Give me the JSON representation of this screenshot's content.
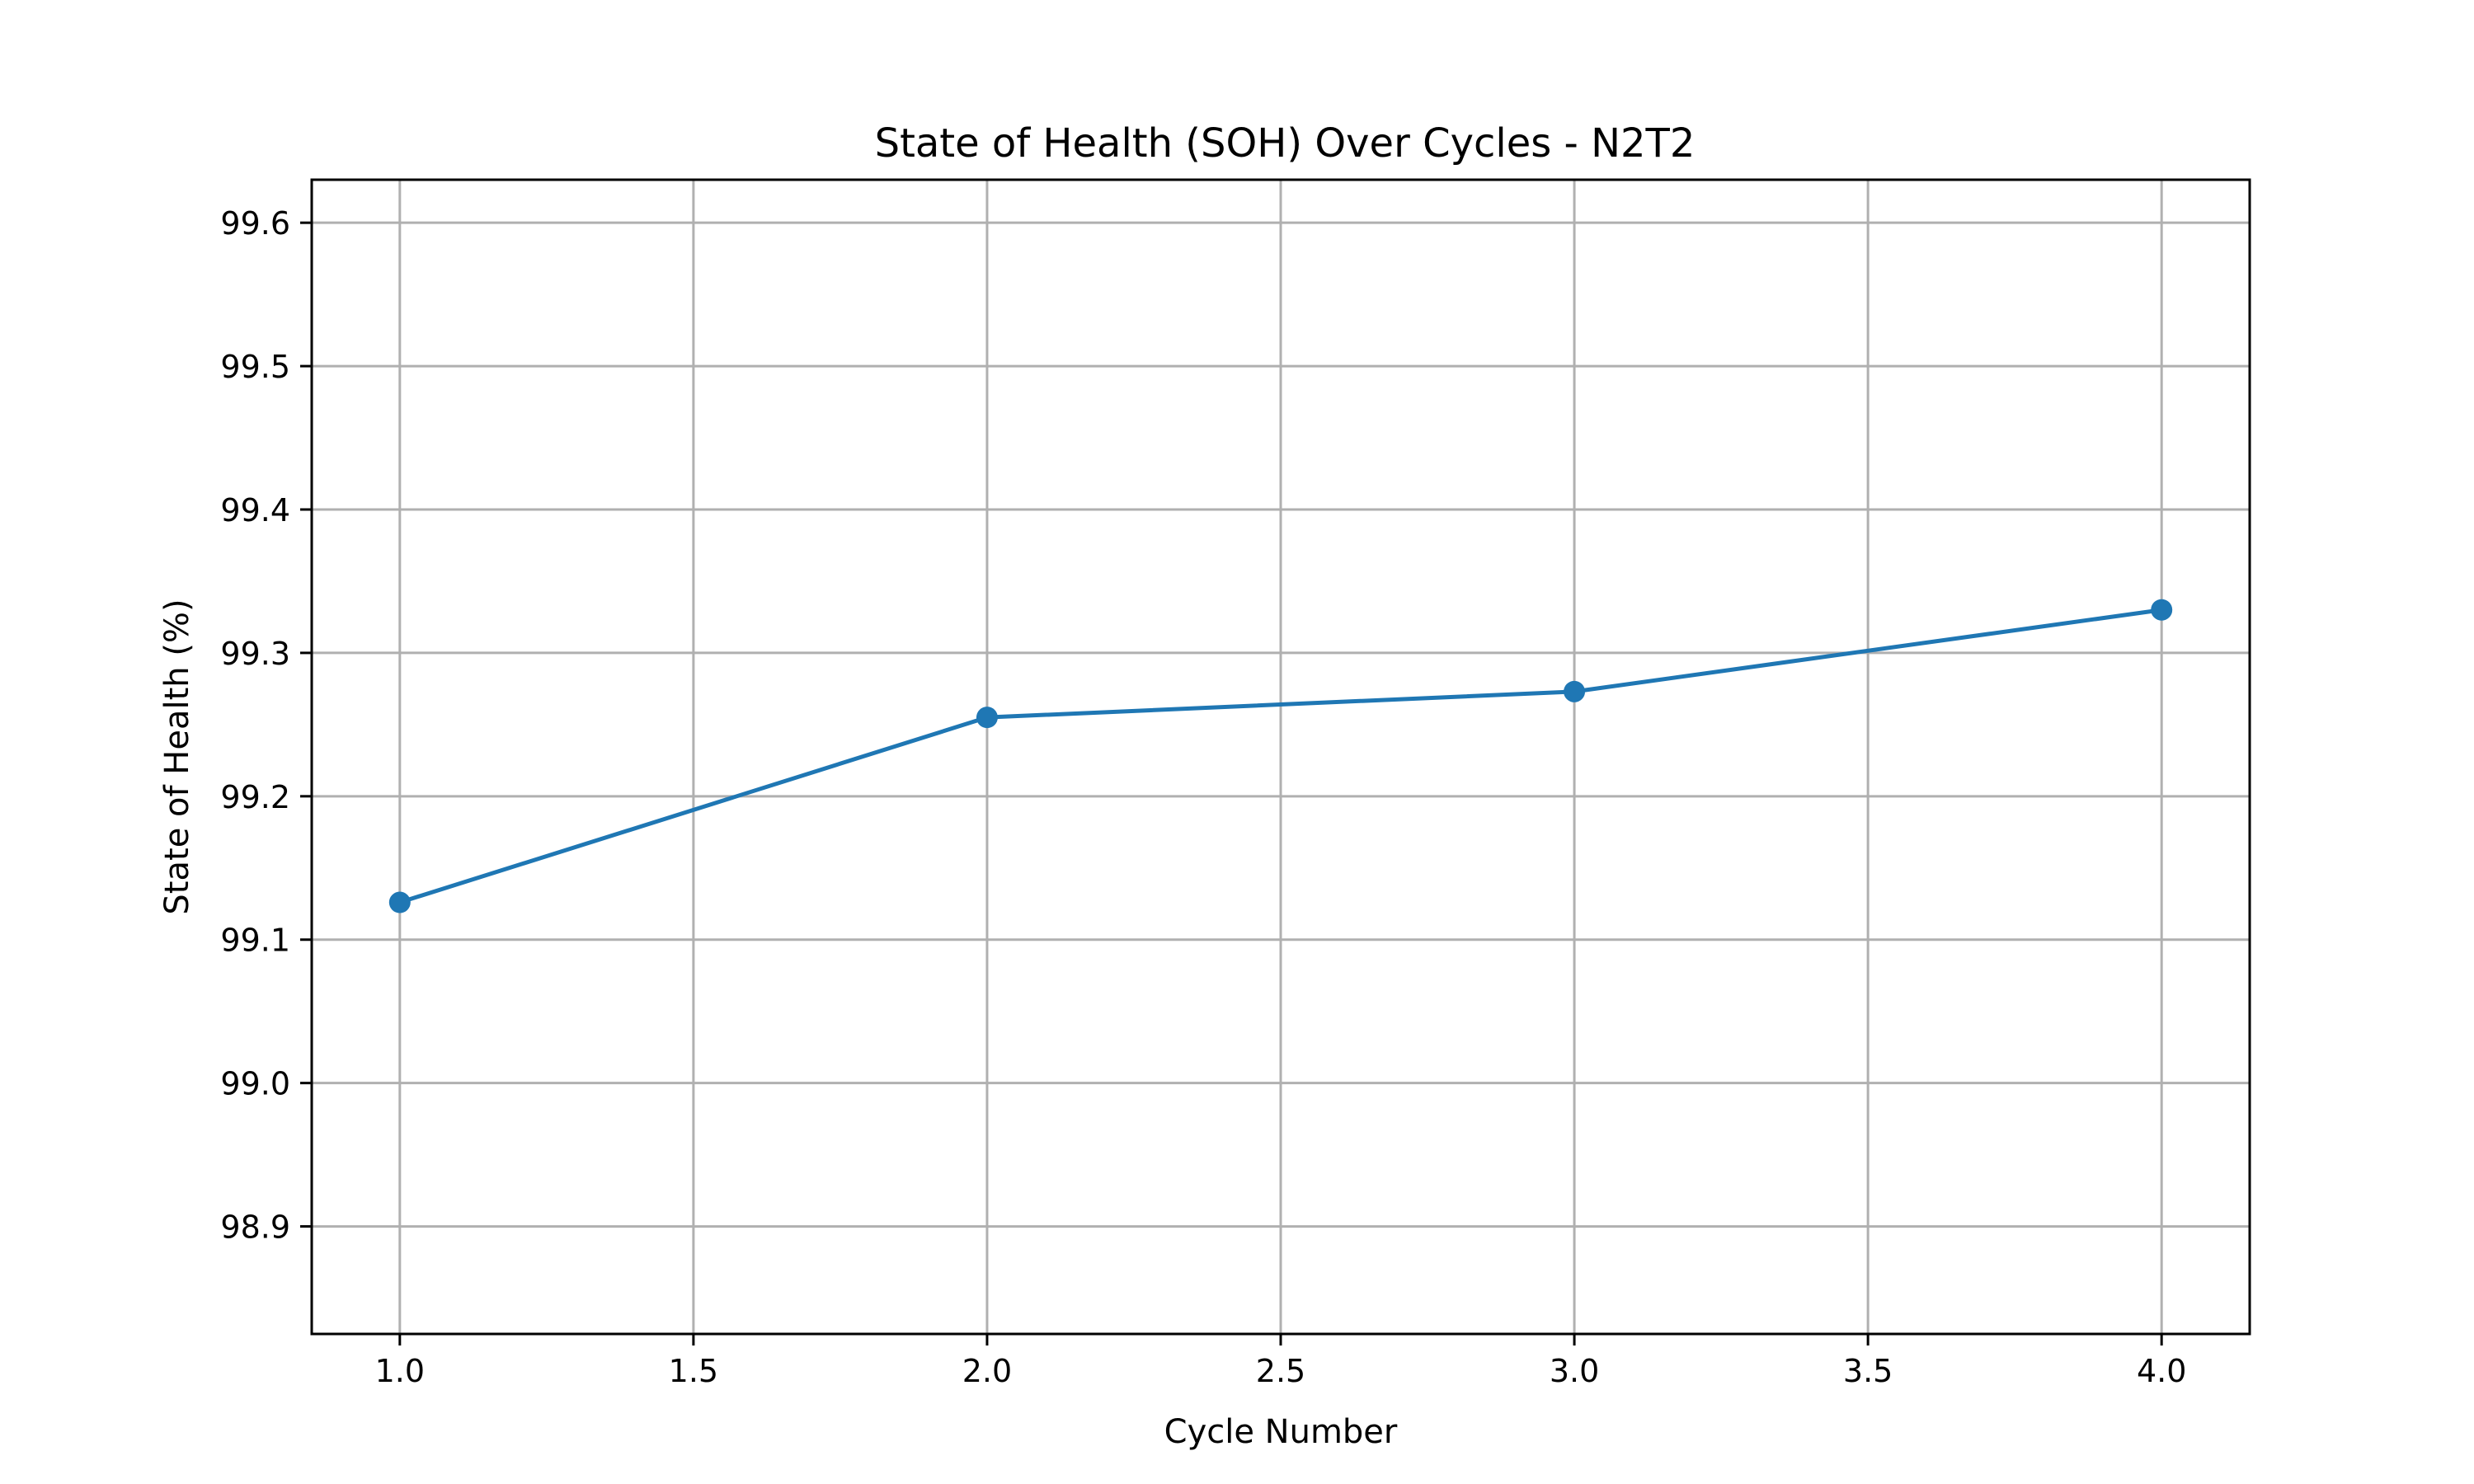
{
  "chart_data": {
    "type": "line",
    "title": "State of Health (SOH) Over Cycles - N2T2",
    "xlabel": "Cycle Number",
    "ylabel": "State of Health (%)",
    "x": [
      1.0,
      2.0,
      3.0,
      4.0
    ],
    "series": [
      {
        "values": [
          99.126,
          99.255,
          99.273,
          99.33
        ],
        "color": "#1f77b4",
        "marker": "circle"
      }
    ],
    "xlim": [
      0.85,
      4.15
    ],
    "ylim": [
      98.825,
      99.63
    ],
    "xticks": [
      "1.0",
      "1.5",
      "2.0",
      "2.5",
      "3.0",
      "3.5",
      "4.0"
    ],
    "xtick_values": [
      1.0,
      1.5,
      2.0,
      2.5,
      3.0,
      3.5,
      4.0
    ],
    "yticks": [
      "98.9",
      "99.0",
      "99.1",
      "99.2",
      "99.3",
      "99.4",
      "99.5",
      "99.6"
    ],
    "ytick_values": [
      98.9,
      99.0,
      99.1,
      99.2,
      99.3,
      99.4,
      99.5,
      99.6
    ],
    "grid": true,
    "legend": "none"
  }
}
